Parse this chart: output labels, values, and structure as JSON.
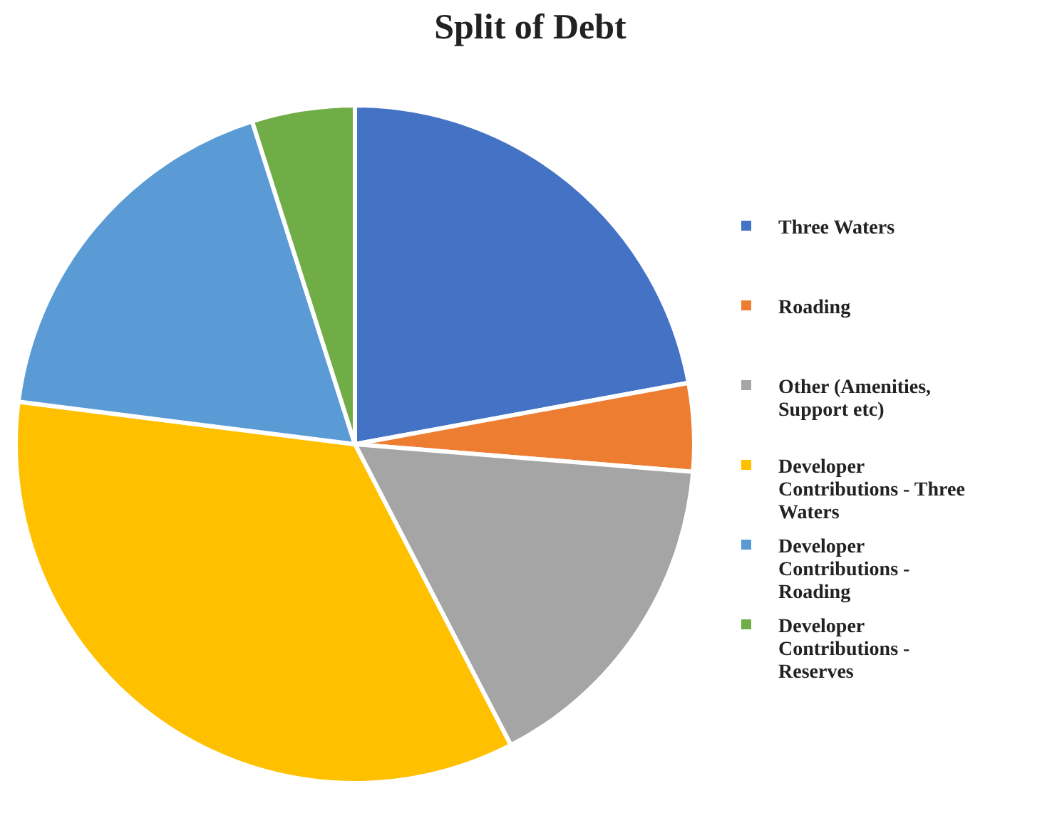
{
  "chart_data": {
    "type": "pie",
    "title": "Split of Debt",
    "categories": [
      "Three Waters",
      "Roading",
      "Other (Amenities, Support etc)",
      "Developer Contributions - Three Waters",
      "Developer Contributions - Roading",
      "Developer Contributions - Reserves"
    ],
    "values": [
      22.1,
      4.2,
      16.1,
      34.6,
      18.1,
      4.9
    ],
    "colors": [
      "#4472c4",
      "#ed7d31",
      "#a5a5a5",
      "#ffc000",
      "#5b9bd5",
      "#70ad47"
    ],
    "legend": "right"
  }
}
